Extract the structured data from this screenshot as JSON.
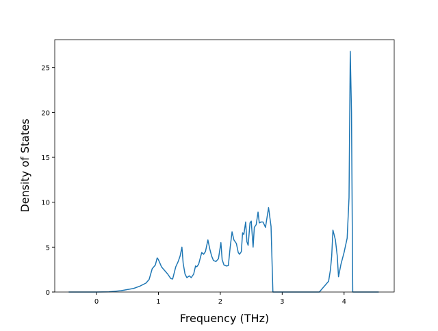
{
  "chart_data": {
    "type": "line",
    "xlabel": "Frequency (THz)",
    "ylabel": "Density of States",
    "x": [
      -0.45,
      0,
      0.2,
      0.4,
      0.6,
      0.7,
      0.8,
      0.85,
      0.9,
      0.95,
      0.98,
      1.0,
      1.05,
      1.1,
      1.15,
      1.2,
      1.23,
      1.28,
      1.32,
      1.35,
      1.38,
      1.4,
      1.43,
      1.46,
      1.5,
      1.53,
      1.57,
      1.6,
      1.62,
      1.65,
      1.7,
      1.73,
      1.76,
      1.8,
      1.83,
      1.86,
      1.89,
      1.93,
      1.97,
      2.01,
      2.03,
      2.06,
      2.1,
      2.13,
      2.16,
      2.19,
      2.22,
      2.26,
      2.29,
      2.31,
      2.34,
      2.36,
      2.38,
      2.41,
      2.43,
      2.45,
      2.48,
      2.5,
      2.53,
      2.55,
      2.58,
      2.61,
      2.63,
      2.66,
      2.69,
      2.73,
      2.78,
      2.82,
      2.85,
      3.6,
      3.75,
      3.78,
      3.8,
      3.82,
      3.86,
      3.89,
      3.91,
      3.95,
      4.0,
      4.05,
      4.08,
      4.1,
      4.12,
      4.14,
      4.56
    ],
    "values": [
      0,
      0,
      0.02,
      0.15,
      0.4,
      0.65,
      1.0,
      1.4,
      2.6,
      3.0,
      3.8,
      3.6,
      2.8,
      2.4,
      2.0,
      1.5,
      1.45,
      2.8,
      3.4,
      4.0,
      5.0,
      3.2,
      2.0,
      1.6,
      1.8,
      1.6,
      2.0,
      2.9,
      2.8,
      3.1,
      4.4,
      4.2,
      4.5,
      5.8,
      4.8,
      4.0,
      3.5,
      3.4,
      3.7,
      5.5,
      3.6,
      3.0,
      2.9,
      2.95,
      5.0,
      6.7,
      5.8,
      5.4,
      4.4,
      4.2,
      4.5,
      6.6,
      6.4,
      7.8,
      5.6,
      5.2,
      7.7,
      7.9,
      5.0,
      7.2,
      7.5,
      8.9,
      7.7,
      7.8,
      7.8,
      7.2,
      9.4,
      7.3,
      0,
      0,
      1.2,
      2.5,
      4.0,
      6.9,
      5.8,
      4.0,
      1.7,
      3.1,
      4.4,
      6.0,
      10.5,
      26.8,
      20.0,
      0,
      0
    ],
    "color": "#1f77b4",
    "xlim": [
      -0.675,
      4.81
    ],
    "xticks": [
      0,
      1,
      2,
      3,
      4
    ],
    "ylim": [
      0,
      28.1
    ],
    "yticks": [
      0,
      5,
      10,
      15,
      20,
      25
    ]
  }
}
